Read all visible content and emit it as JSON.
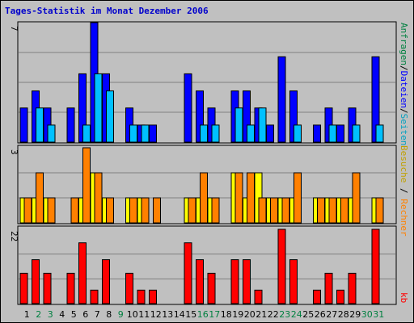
{
  "chart_data": [
    {
      "type": "bar",
      "title": "Tages-Statistik im Monat Dezember 2006",
      "panel": "top",
      "ymax_label": "7",
      "ylim": [
        0,
        7
      ],
      "categories": [
        "1",
        "2",
        "3",
        "4",
        "5",
        "6",
        "7",
        "8",
        "9",
        "10",
        "11",
        "12",
        "13",
        "14",
        "15",
        "16",
        "17",
        "18",
        "19",
        "20",
        "21",
        "22",
        "23",
        "24",
        "25",
        "26",
        "27",
        "28",
        "29",
        "30",
        "31"
      ],
      "weekend_days": [
        "2",
        "3",
        "9",
        "16",
        "17",
        "23",
        "24",
        "30",
        "31"
      ],
      "axis_labels": [
        "Anfragen",
        "Dateien",
        "Seiten"
      ],
      "series": [
        {
          "name": "Anfragen",
          "color": "#008040",
          "values": [
            0,
            0,
            0,
            0,
            0,
            0,
            0,
            0,
            0,
            0,
            0,
            0,
            0,
            0,
            0,
            0,
            0,
            0,
            0,
            0,
            0,
            0,
            0,
            0,
            0,
            0,
            0,
            0,
            0,
            0,
            0
          ]
        },
        {
          "name": "Dateien",
          "color": "#0000ff",
          "values": [
            2,
            3,
            2,
            0,
            2,
            4,
            7,
            4,
            0,
            2,
            1,
            1,
            0,
            0,
            4,
            3,
            2,
            0,
            3,
            3,
            2,
            1,
            5,
            3,
            0,
            1,
            2,
            1,
            2,
            0,
            5
          ]
        },
        {
          "name": "Seiten",
          "color": "#00c0ff",
          "values": [
            0,
            2,
            1,
            0,
            0,
            1,
            4,
            3,
            0,
            1,
            1,
            0,
            0,
            0,
            0,
            1,
            1,
            0,
            2,
            1,
            2,
            0,
            0,
            1,
            0,
            0,
            1,
            0,
            1,
            0,
            1
          ]
        }
      ]
    },
    {
      "type": "bar",
      "panel": "middle",
      "ymax_label": "3",
      "ylim": [
        0,
        3
      ],
      "axis_labels": [
        "Besuche",
        "Rechner"
      ],
      "series": [
        {
          "name": "Besuche",
          "color": "#ffff00",
          "values": [
            1,
            1,
            1,
            0,
            0,
            1,
            2,
            1,
            0,
            1,
            1,
            0,
            0,
            0,
            1,
            1,
            1,
            0,
            2,
            1,
            2,
            1,
            1,
            1,
            0,
            1,
            1,
            1,
            1,
            0,
            1
          ]
        },
        {
          "name": "Rechner",
          "color": "#ff8000",
          "values": [
            1,
            2,
            1,
            0,
            1,
            3,
            2,
            1,
            0,
            1,
            1,
            1,
            0,
            0,
            1,
            2,
            1,
            0,
            2,
            2,
            1,
            1,
            1,
            2,
            0,
            1,
            1,
            1,
            2,
            0,
            1
          ]
        }
      ]
    },
    {
      "type": "bar",
      "panel": "bottom",
      "ymax_label": "22",
      "ylim": [
        0,
        22
      ],
      "axis_labels": [
        "kb"
      ],
      "series": [
        {
          "name": "kb",
          "color": "#ff0000",
          "values": [
            9,
            13,
            9,
            0,
            9,
            18,
            4,
            13,
            0,
            9,
            4,
            4,
            0,
            0,
            18,
            13,
            9,
            0,
            13,
            13,
            4,
            0,
            22,
            13,
            0,
            4,
            9,
            4,
            9,
            0,
            22
          ]
        }
      ]
    }
  ],
  "colors": {
    "background": "#c0c0c0",
    "title": "#0000cc",
    "weekday_label": "#000000",
    "weekend_label": "#008040",
    "divider": "#ffffff"
  }
}
